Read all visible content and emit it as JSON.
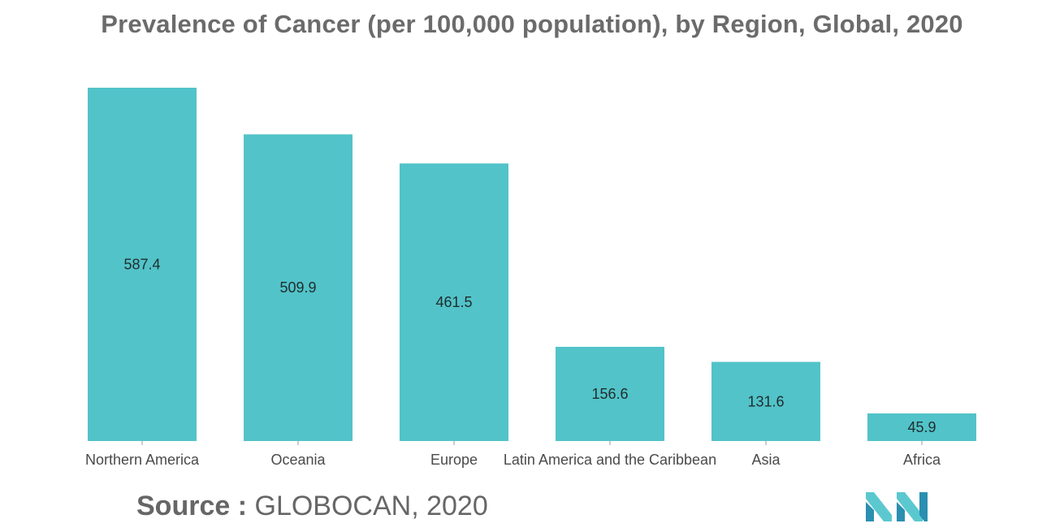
{
  "title": "Prevalence of Cancer (per 100,000 population), by Region, Global, 2020",
  "source": {
    "label": "Source :",
    "value": "GLOBOCAN, 2020"
  },
  "colors": {
    "bar": "#52c3c9",
    "logo_light": "#5bc8d0",
    "logo_dark": "#2a8fb0"
  },
  "logo": "mordor-intelligence-logo",
  "chart_data": {
    "type": "bar",
    "title": "Prevalence of Cancer (per 100,000 population), by Region, Global, 2020",
    "categories": [
      "Northern America",
      "Oceania",
      "Europe",
      "Latin America and the Caribbean",
      "Asia",
      "Africa"
    ],
    "values": [
      587.4,
      509.9,
      461.5,
      156.6,
      131.6,
      45.9
    ],
    "value_labels": [
      "587.4",
      "509.9",
      "461.5",
      "156.6",
      "131.6",
      "45.9"
    ],
    "xlabel": "",
    "ylabel": "",
    "ylim": [
      0,
      587.4
    ],
    "grid": false,
    "legend": "none"
  }
}
